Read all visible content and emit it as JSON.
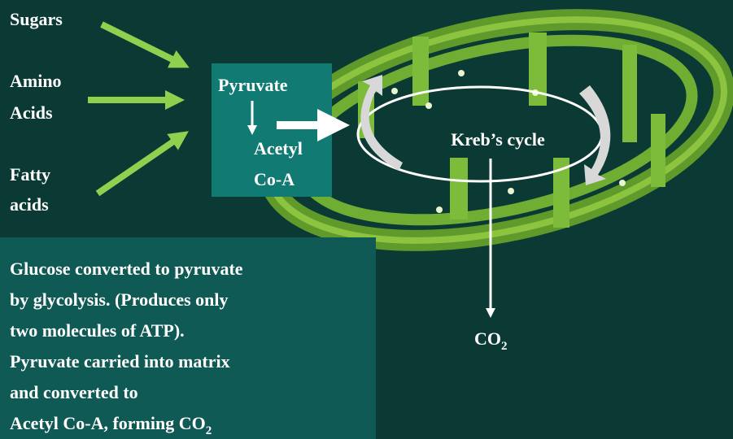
{
  "inputs": [
    "Sugars",
    "Amino",
    "Acids",
    "Fatty",
    "acids"
  ],
  "box": {
    "pyruvate": "Pyruvate",
    "acetyl": "Acetyl",
    "coa": "Co-A"
  },
  "cycle": "Kreb’s cycle",
  "product": {
    "base": "CO",
    "sub": "2"
  },
  "notes": {
    "lines": [
      "Glucose converted to pyruvate",
      "by glycolysis. (Produces only",
      "two molecules of ATP).",
      "Pyruvate carried into  matrix",
      "and converted to",
      "Acetyl Co-A, forming CO"
    ],
    "last_sub": "2"
  }
}
